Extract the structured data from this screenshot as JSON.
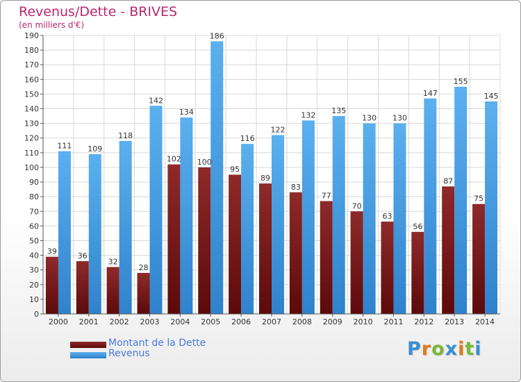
{
  "chart_data": {
    "type": "bar",
    "title": "Revenus/Dette - BRIVES",
    "subtitle": "(en milliers d'€)",
    "categories": [
      "2000",
      "2001",
      "2002",
      "2003",
      "2004",
      "2005",
      "2006",
      "2007",
      "2008",
      "2009",
      "2010",
      "2011",
      "2012",
      "2013",
      "2014"
    ],
    "series": [
      {
        "name": "Montant de la Dette",
        "color": "#7a1c1c",
        "values": [
          39,
          36,
          32,
          28,
          102,
          100,
          95,
          89,
          83,
          77,
          70,
          63,
          56,
          87,
          75
        ]
      },
      {
        "name": "Revenus",
        "color": "#4aa3e8",
        "values": [
          111,
          109,
          118,
          142,
          134,
          186,
          116,
          122,
          132,
          135,
          130,
          130,
          147,
          155,
          145
        ]
      }
    ],
    "ylim": [
      0,
      190
    ],
    "yticks": [
      0,
      10,
      20,
      30,
      40,
      50,
      60,
      70,
      80,
      90,
      100,
      110,
      120,
      130,
      140,
      150,
      160,
      170,
      180,
      190
    ],
    "grid": true,
    "legend_position": "bottom-left"
  },
  "logo": {
    "text": "Proxiti"
  },
  "colors": {
    "title": "#b5286e",
    "legend_text": "#4a78e0"
  }
}
